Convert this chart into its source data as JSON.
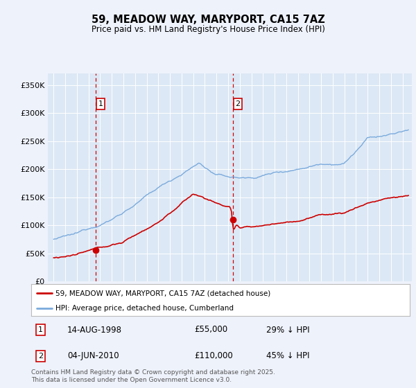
{
  "title": "59, MEADOW WAY, MARYPORT, CA15 7AZ",
  "subtitle": "Price paid vs. HM Land Registry's House Price Index (HPI)",
  "background_color": "#eef2fb",
  "plot_bg_color": "#dce8f5",
  "grid_color": "#ffffff",
  "ylabel_ticks": [
    "£0",
    "£50K",
    "£100K",
    "£150K",
    "£200K",
    "£250K",
    "£300K",
    "£350K"
  ],
  "ytick_values": [
    0,
    50000,
    100000,
    150000,
    200000,
    250000,
    300000,
    350000
  ],
  "ylim": [
    0,
    370000
  ],
  "sale1": {
    "date_num": 1998.62,
    "price": 55000,
    "label": "1",
    "date_str": "14-AUG-1998",
    "pct": "29% ↓ HPI"
  },
  "sale2": {
    "date_num": 2010.42,
    "price": 110000,
    "label": "2",
    "date_str": "04-JUN-2010",
    "pct": "45% ↓ HPI"
  },
  "red_line_color": "#cc0000",
  "blue_line_color": "#7aaadd",
  "marker_fill": "#cc0000",
  "vline_color": "#cc0000",
  "legend_label_red": "59, MEADOW WAY, MARYPORT, CA15 7AZ (detached house)",
  "legend_label_blue": "HPI: Average price, detached house, Cumberland",
  "footer": "Contains HM Land Registry data © Crown copyright and database right 2025.\nThis data is licensed under the Open Government Licence v3.0.",
  "xlim_start": 1994.5,
  "xlim_end": 2025.8
}
